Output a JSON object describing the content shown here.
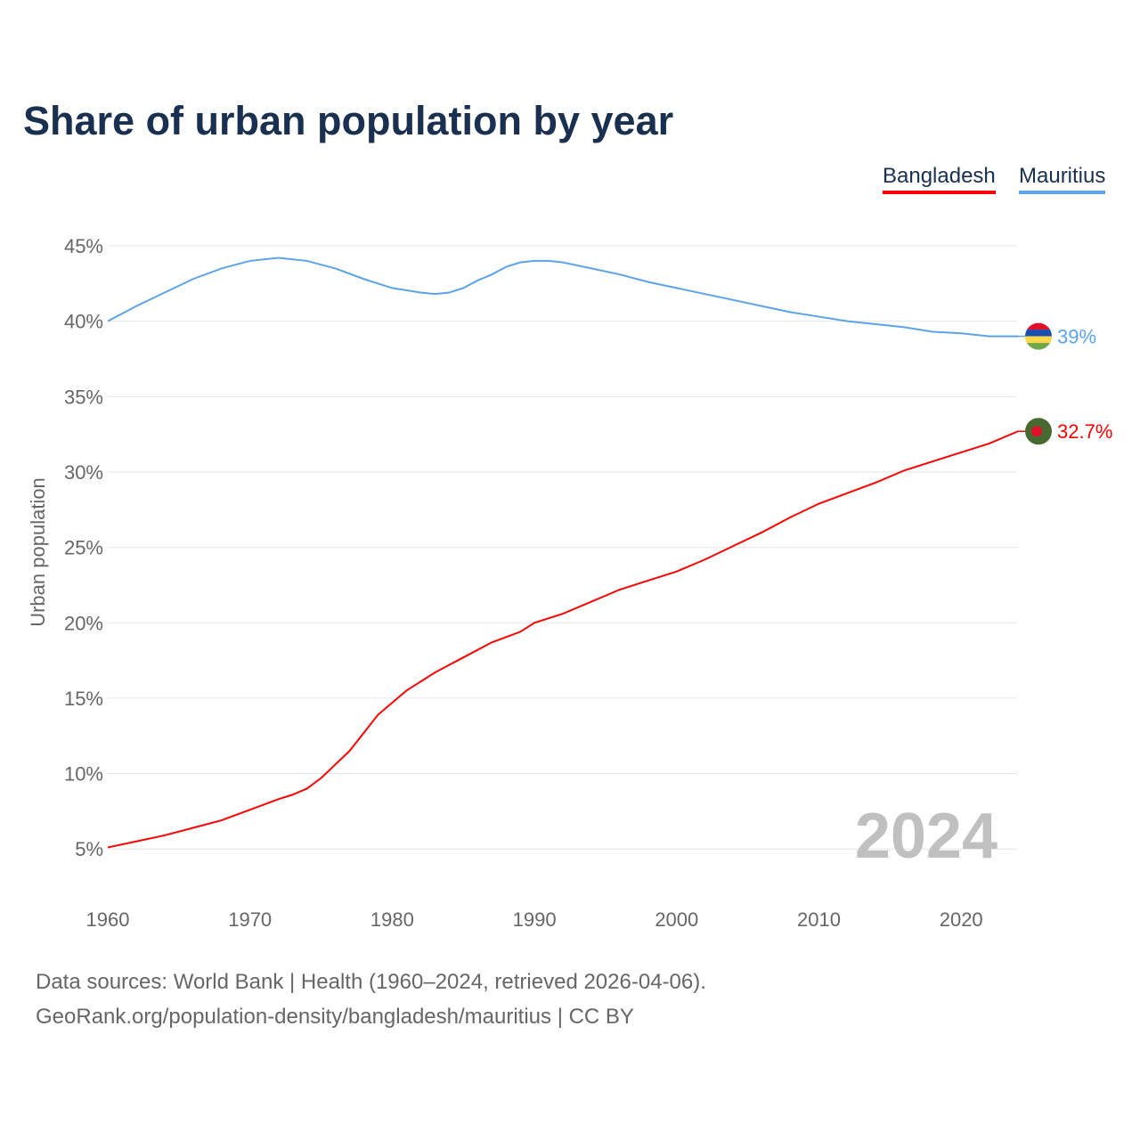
{
  "title": "Share of urban population by year",
  "footer": {
    "line1": "Data sources: World Bank | Health (1960–2024, retrieved 2026-04-06).",
    "line2": "GeoRank.org/population-density/bangladesh/mauritius | CC BY"
  },
  "chart_data": {
    "type": "line",
    "title": "Share of urban population by year",
    "xlabel": "",
    "ylabel": "Urban population",
    "xlim": [
      1960,
      2024
    ],
    "ylim": [
      2,
      47
    ],
    "xticks": [
      1960,
      1970,
      1980,
      1990,
      2000,
      2010,
      2020
    ],
    "yticks": [
      5,
      10,
      15,
      20,
      25,
      30,
      35,
      40,
      45
    ],
    "ytick_labels": [
      "5%",
      "10%",
      "15%",
      "20%",
      "25%",
      "30%",
      "35%",
      "40%",
      "45%"
    ],
    "year_label": "2024",
    "grid": true,
    "legend_position": "top-right",
    "series": [
      {
        "name": "Bangladesh",
        "color": "#ff0000",
        "end_label": "32.7%",
        "x": [
          1960,
          1962,
          1964,
          1966,
          1968,
          1970,
          1972,
          1973,
          1974,
          1975,
          1977,
          1979,
          1980,
          1981,
          1983,
          1985,
          1987,
          1989,
          1990,
          1992,
          1994,
          1996,
          1998,
          2000,
          2002,
          2004,
          2006,
          2008,
          2010,
          2012,
          2014,
          2016,
          2018,
          2020,
          2022,
          2024
        ],
        "y": [
          5.1,
          5.5,
          5.9,
          6.4,
          6.9,
          7.6,
          8.3,
          8.6,
          9.0,
          9.7,
          11.5,
          13.9,
          14.7,
          15.5,
          16.7,
          17.7,
          18.7,
          19.4,
          20.0,
          20.6,
          21.4,
          22.2,
          22.8,
          23.4,
          24.2,
          25.1,
          26.0,
          27.0,
          27.9,
          28.6,
          29.3,
          30.1,
          30.7,
          31.3,
          31.9,
          32.7
        ]
      },
      {
        "name": "Mauritius",
        "color": "#5ba3ea",
        "end_label": "39%",
        "x": [
          1960,
          1962,
          1964,
          1966,
          1968,
          1970,
          1972,
          1974,
          1976,
          1978,
          1980,
          1982,
          1983,
          1984,
          1985,
          1986,
          1987,
          1988,
          1989,
          1990,
          1991,
          1992,
          1994,
          1996,
          1998,
          2000,
          2002,
          2004,
          2006,
          2008,
          2010,
          2012,
          2014,
          2016,
          2018,
          2020,
          2022,
          2024
        ],
        "y": [
          40.0,
          41.0,
          41.9,
          42.8,
          43.5,
          44.0,
          44.2,
          44.0,
          43.5,
          42.8,
          42.2,
          41.9,
          41.8,
          41.9,
          42.2,
          42.7,
          43.1,
          43.6,
          43.9,
          44.0,
          44.0,
          43.9,
          43.5,
          43.1,
          42.6,
          42.2,
          41.8,
          41.4,
          41.0,
          40.6,
          40.3,
          40.0,
          39.8,
          39.6,
          39.3,
          39.2,
          39.0,
          39.0
        ]
      }
    ]
  }
}
